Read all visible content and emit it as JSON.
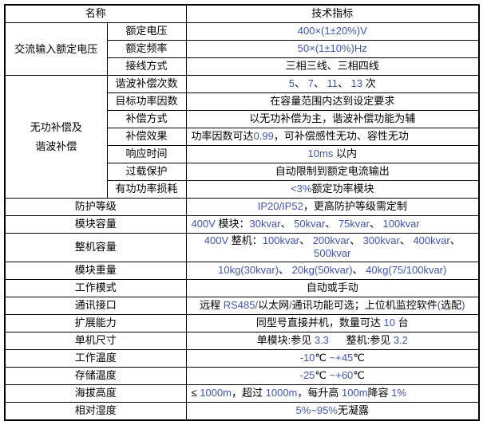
{
  "colors": {
    "accent_blue": "#4156a8",
    "text": "#000000",
    "border": "#000000",
    "background": "#ffffff"
  },
  "table": {
    "header": {
      "name": "名称",
      "value": "技术指标"
    },
    "sections": [
      {
        "group_lines": [
          "交流输入额定电压"
        ],
        "rows": [
          {
            "label": "额定电压",
            "align": "center",
            "value": [
              [
                "400×(1±20%)V",
                "b"
              ]
            ]
          },
          {
            "label": "额定频率",
            "align": "center",
            "value": [
              [
                "50×(1±10%)Hz",
                "b"
              ]
            ]
          },
          {
            "label": "接线方式",
            "align": "center",
            "value": [
              [
                "三相三线、三相四线",
                "k"
              ]
            ]
          }
        ]
      },
      {
        "group_lines": [
          "无功补偿及",
          "谐波补偿"
        ],
        "rows": [
          {
            "label": "谐波补偿次数",
            "align": "center",
            "value": [
              [
                "5",
                "b"
              ],
              [
                "、 ",
                "k"
              ],
              [
                "7",
                "b"
              ],
              [
                "、 ",
                "k"
              ],
              [
                "11",
                "b"
              ],
              [
                "、 ",
                "k"
              ],
              [
                "13",
                "b"
              ],
              [
                " 次",
                "k"
              ]
            ]
          },
          {
            "label": "目标功率因数",
            "align": "center",
            "value": [
              [
                "在容量范围内达到设定要求",
                "k"
              ]
            ]
          },
          {
            "label": "补偿方式",
            "align": "center",
            "value": [
              [
                "以无功补偿为主，谐波补偿功能为辅",
                "k"
              ]
            ]
          },
          {
            "label": "补偿效果",
            "align": "left",
            "value": [
              [
                "功率因数可达",
                "k"
              ],
              [
                "0.99",
                "b"
              ],
              [
                "，可补偿感性无功、容性无功",
                "k"
              ]
            ]
          },
          {
            "label": "响应时间",
            "align": "center",
            "value": [
              [
                "10ms",
                "b"
              ],
              [
                " 以内",
                "k"
              ]
            ]
          },
          {
            "label": "过载保护",
            "align": "center",
            "value": [
              [
                "自动限制到额定电流输出",
                "k"
              ]
            ]
          },
          {
            "label": "有功功率损耗",
            "align": "center",
            "value": [
              [
                "<3%",
                "b"
              ],
              [
                "额定功率模块",
                "k"
              ]
            ]
          }
        ]
      }
    ],
    "flat_rows": [
      {
        "label": "防护等级",
        "align": "center",
        "value": [
          [
            "IP20/IP52",
            "b"
          ],
          [
            "，更高防护等级需定制",
            "k"
          ]
        ]
      },
      {
        "label": "模块容量",
        "align": "left",
        "value": [
          [
            "400V",
            "b"
          ],
          [
            " 模块：",
            "k"
          ],
          [
            "30kvar",
            "b"
          ],
          [
            "、 ",
            "k"
          ],
          [
            "50kvar",
            "b"
          ],
          [
            "、 ",
            "k"
          ],
          [
            "75kvar",
            "b"
          ],
          [
            "、 ",
            "k"
          ],
          [
            "100kvar",
            "b"
          ]
        ]
      },
      {
        "label": "整机容量",
        "align": "center",
        "value": [
          [
            "400V",
            "b"
          ],
          [
            " 整机：",
            "k"
          ],
          [
            "100kvar",
            "b"
          ],
          [
            "、 ",
            "k"
          ],
          [
            "200kvar",
            "b"
          ],
          [
            "、 ",
            "k"
          ],
          [
            "300kvar",
            "b"
          ],
          [
            "、 ",
            "k"
          ],
          [
            "400kvar",
            "b"
          ],
          [
            "、 ",
            "k"
          ],
          [
            "500kvar",
            "b"
          ]
        ]
      },
      {
        "label": "模块重量",
        "align": "center",
        "value": [
          [
            "10kg(30kvar)",
            "b"
          ],
          [
            "、 ",
            "k"
          ],
          [
            "20kg(50kvar)",
            "b"
          ],
          [
            "、 ",
            "k"
          ],
          [
            "40kg(75/100kvar)",
            "b"
          ]
        ]
      },
      {
        "label": "工作模式",
        "align": "center",
        "value": [
          [
            "自动或手动",
            "k"
          ]
        ]
      },
      {
        "label": "通讯接口",
        "align": "center",
        "value": [
          [
            "远程 ",
            "k"
          ],
          [
            "RS485/",
            "b"
          ],
          [
            "以太网",
            "k"
          ],
          [
            "/",
            "b"
          ],
          [
            "通讯功能可选；上位机监控软件",
            "k"
          ],
          [
            "(",
            "b"
          ],
          [
            "选配",
            "k"
          ],
          [
            ")",
            "b"
          ]
        ]
      },
      {
        "label": "扩展能力",
        "align": "center",
        "value": [
          [
            "同型号直接并机，数量可达 ",
            "k"
          ],
          [
            "10",
            "b"
          ],
          [
            " 台",
            "k"
          ]
        ]
      },
      {
        "label": "单机尺寸",
        "align": "center",
        "value": [
          [
            "单模块:参见 ",
            "k"
          ],
          [
            "3.3",
            "b"
          ],
          [
            "      整机:参见 ",
            "k"
          ],
          [
            "3.2",
            "b"
          ]
        ]
      },
      {
        "label": "工作温度",
        "align": "center",
        "value": [
          [
            "-10",
            "b"
          ],
          [
            "℃ ",
            "k"
          ],
          [
            "~+45",
            "b"
          ],
          [
            "℃",
            "k"
          ]
        ]
      },
      {
        "label": "存储温度",
        "align": "center",
        "value": [
          [
            "-25",
            "b"
          ],
          [
            "℃ ",
            "k"
          ],
          [
            "~+60",
            "b"
          ],
          [
            "℃",
            "k"
          ]
        ]
      },
      {
        "label": "海拔高度",
        "align": "left",
        "value": [
          [
            "≤ ",
            "k"
          ],
          [
            "1000m",
            "b"
          ],
          [
            "，超过 ",
            "k"
          ],
          [
            "1000m",
            "b"
          ],
          [
            "，每升高 ",
            "k"
          ],
          [
            "100m",
            "b"
          ],
          [
            "降容 ",
            "k"
          ],
          [
            "1%",
            "b"
          ]
        ]
      },
      {
        "label": "相对湿度",
        "align": "center",
        "value": [
          [
            "5%~95%",
            "b"
          ],
          [
            "无凝露",
            "k"
          ]
        ]
      }
    ]
  }
}
